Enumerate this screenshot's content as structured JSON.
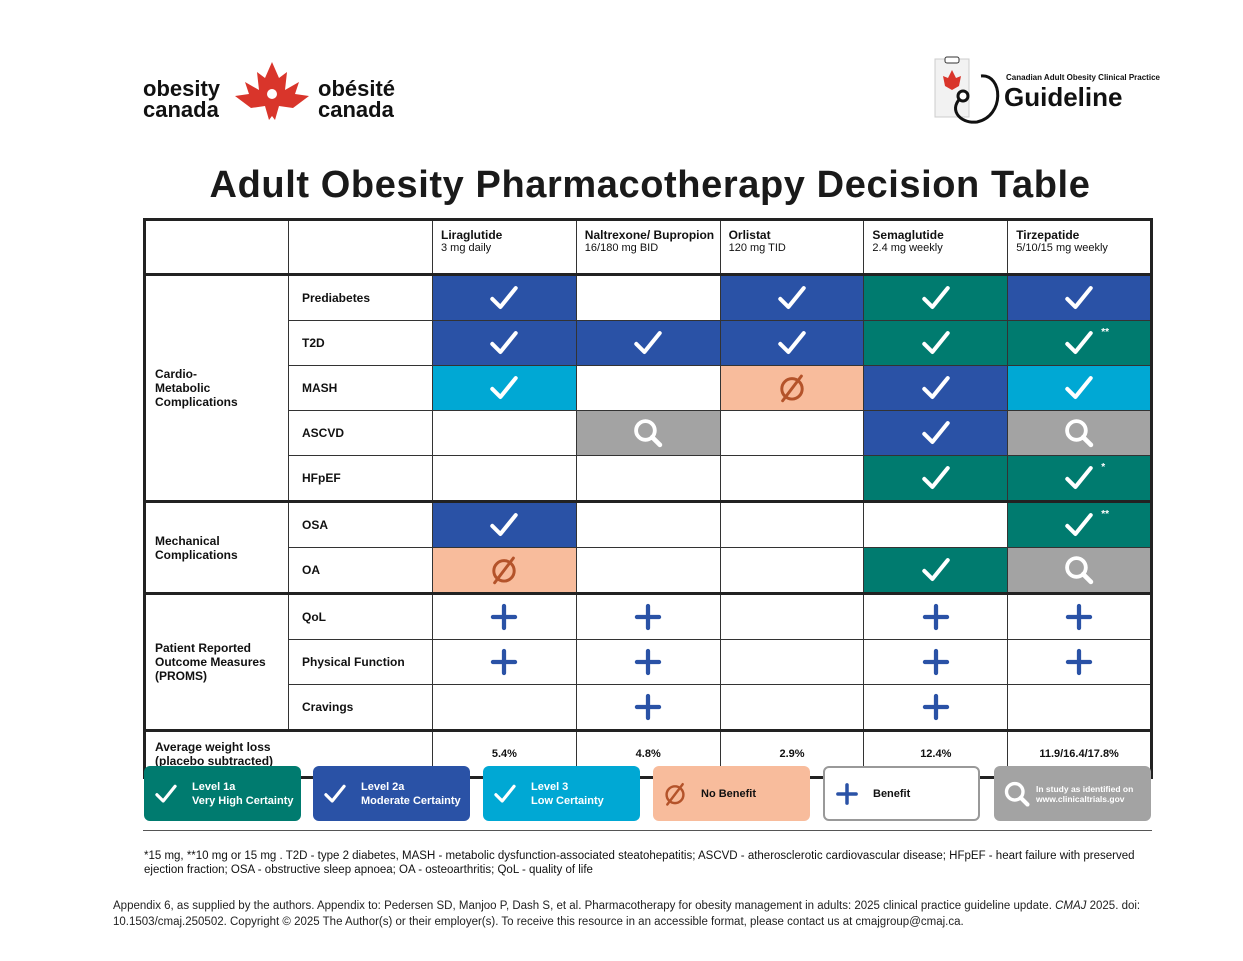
{
  "header": {
    "logo_left": {
      "en_1": "obesity",
      "en_2": "canada",
      "fr_1": "obésité",
      "fr_2": "canada"
    },
    "logo_right": {
      "tagline": "Canadian Adult Obesity Clinical Practice",
      "name": "Guideline"
    }
  },
  "title": "Adult Obesity Pharmacotherapy Decision Table",
  "table": {
    "columns": [
      {
        "name": "Liraglutide",
        "dose": "3 mg daily"
      },
      {
        "name": "Naltrexone/ Bupropion",
        "dose": "16/180 mg BID"
      },
      {
        "name": "Orlistat",
        "dose": "120 mg TID"
      },
      {
        "name": "Semaglutide",
        "dose": "2.4 mg weekly"
      },
      {
        "name": "Tirzepatide",
        "dose": "5/10/15 mg weekly"
      }
    ],
    "groups": [
      {
        "label": "Cardio-\nMetabolic\nComplications",
        "rows": [
          {
            "label": "Prediabetes",
            "cells": [
              {
                "level": "2a"
              },
              null,
              {
                "level": "2a"
              },
              {
                "level": "1a"
              },
              {
                "level": "2a"
              }
            ]
          },
          {
            "label": "T2D",
            "cells": [
              {
                "level": "2a"
              },
              {
                "level": "2a"
              },
              {
                "level": "2a"
              },
              {
                "level": "1a"
              },
              {
                "level": "1a",
                "note": "**"
              }
            ]
          },
          {
            "label": "MASH",
            "cells": [
              {
                "level": "3"
              },
              null,
              {
                "level": "nb"
              },
              {
                "level": "2a"
              },
              {
                "level": "3"
              }
            ]
          },
          {
            "label": "ASCVD",
            "cells": [
              null,
              {
                "level": "study"
              },
              null,
              {
                "level": "2a"
              },
              {
                "level": "study"
              }
            ]
          },
          {
            "label": "HFpEF",
            "cells": [
              null,
              null,
              null,
              {
                "level": "1a"
              },
              {
                "level": "1a",
                "note": "*"
              }
            ]
          }
        ]
      },
      {
        "label": "Mechanical\nComplications",
        "rows": [
          {
            "label": "OSA",
            "cells": [
              {
                "level": "2a"
              },
              null,
              null,
              null,
              {
                "level": "1a",
                "note": "**"
              }
            ]
          },
          {
            "label": "OA",
            "cells": [
              {
                "level": "nb"
              },
              null,
              null,
              {
                "level": "1a"
              },
              {
                "level": "study"
              }
            ]
          }
        ]
      },
      {
        "label": "Patient Reported\nOutcome Measures\n(PROMS)",
        "rows": [
          {
            "label": "QoL",
            "cells": [
              {
                "level": "benefit"
              },
              {
                "level": "benefit"
              },
              null,
              {
                "level": "benefit"
              },
              {
                "level": "benefit"
              }
            ]
          },
          {
            "label": "Physical Function",
            "cells": [
              {
                "level": "benefit"
              },
              {
                "level": "benefit"
              },
              null,
              {
                "level": "benefit"
              },
              {
                "level": "benefit"
              }
            ]
          },
          {
            "label": "Cravings",
            "cells": [
              null,
              {
                "level": "benefit"
              },
              null,
              {
                "level": "benefit"
              },
              null
            ]
          }
        ]
      }
    ],
    "summary": {
      "label": "Average weight loss\n(placebo subtracted)",
      "values": [
        "5.4%",
        "4.8%",
        "2.9%",
        "12.4%",
        "11.9/16.4/17.8%"
      ]
    }
  },
  "legend": [
    {
      "key": "1a",
      "label": "Level 1a",
      "sublabel": "Very High Certainty",
      "icon": "check",
      "color": "#007b6f",
      "icon_color": "#ffffff"
    },
    {
      "key": "2a",
      "label": "Level 2a",
      "sublabel": "Moderate Certainty",
      "icon": "check",
      "color": "#2a52a6",
      "icon_color": "#ffffff"
    },
    {
      "key": "3",
      "label": "Level 3",
      "sublabel": "Low Certainty",
      "icon": "check",
      "color": "#00a8d4",
      "icon_color": "#ffffff"
    },
    {
      "key": "nb",
      "label": "No Benefit",
      "icon": "none",
      "color": "#f8bc9c",
      "icon_color": "#b4532a"
    },
    {
      "key": "benefit",
      "label": "Benefit",
      "icon": "plus",
      "color": "#ffffff",
      "icon_color": "#2a52a6"
    },
    {
      "key": "study",
      "label": "In study as identified on\nwww.clinicaltrials.gov",
      "icon": "search",
      "color": "#a3a3a3",
      "icon_color": "#ffffff"
    }
  ],
  "footnote": "*15 mg,  **10 mg or 15 mg .  T2D - type 2 diabetes, MASH - metabolic dysfunction-associated steatohepatitis; ASCVD - atherosclerotic cardiovascular disease; HFpEF - heart failure with preserved ejection fraction; OSA - obstructive sleep apnoea; OA - osteoarthritis; QoL - quality of life",
  "citation": {
    "pre": "Appendix 6, as supplied by the authors. Appendix to: Pedersen SD, Manjoo P, Dash S, et al. Pharmacotherapy for obesity management in adults: 2025 clinical practice guideline update.",
    "journal": "CMAJ",
    "post": "2025. doi: 10.1503/cmaj.250502. Copyright © 2025 The Author(s) or their employer(s). To receive this resource in an accessible format, please contact us at cmajgroup@cmaj.ca."
  }
}
